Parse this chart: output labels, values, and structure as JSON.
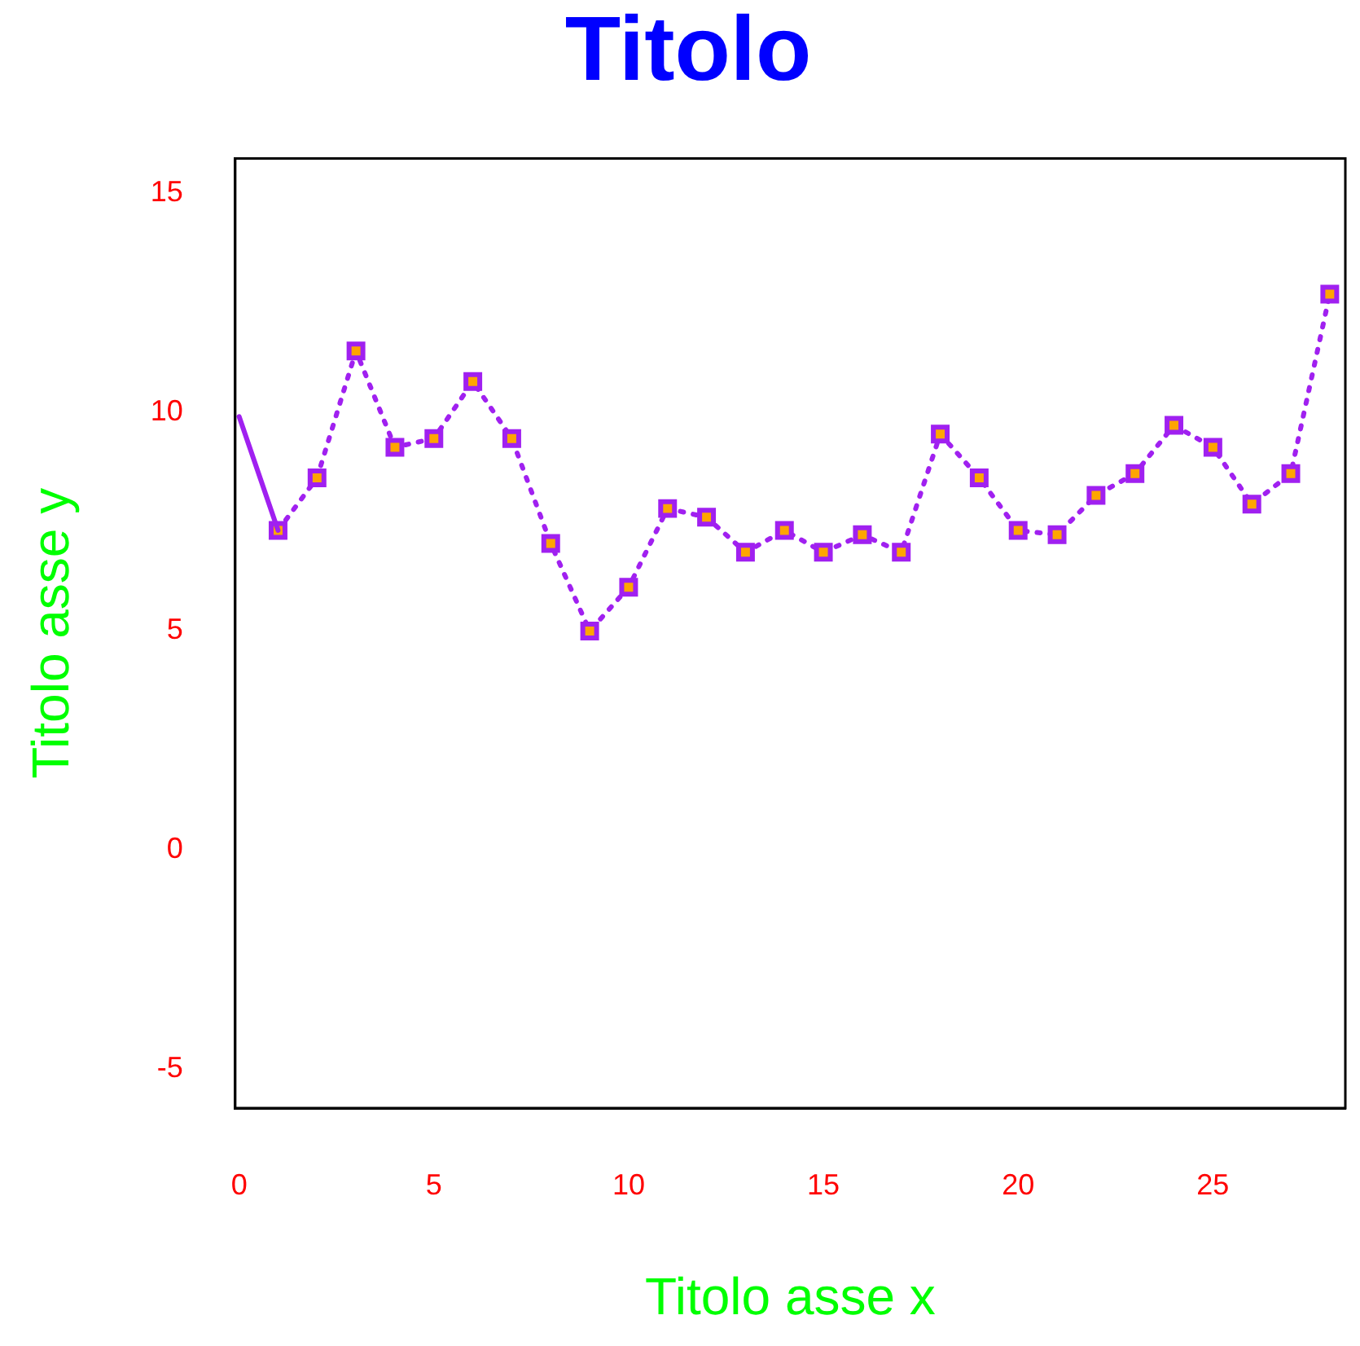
{
  "chart_data": {
    "type": "line",
    "title": "Titolo",
    "xlabel": "Titolo asse x",
    "ylabel": "Titolo asse y",
    "xlim": [
      -0.1,
      28.4
    ],
    "xticks": [
      0,
      5,
      10,
      15,
      20,
      25
    ],
    "ylim": [
      -5.9,
      15.8
    ],
    "yticks": [
      -5,
      0,
      5,
      10,
      15
    ],
    "grid": false,
    "legend": false,
    "series": [
      {
        "color": "#a020f0",
        "x": [
          0,
          1
        ],
        "values": [
          9.9,
          7.3
        ],
        "line_style": "solid"
      },
      {
        "color": "#a020f0",
        "x": [
          1,
          2,
          3,
          4,
          5,
          6,
          7,
          8,
          9,
          10,
          11,
          12,
          13,
          14,
          15,
          16,
          17,
          18,
          19,
          20,
          21,
          22,
          23,
          24,
          25,
          26,
          27,
          28
        ],
        "values": [
          7.3,
          8.5,
          11.4,
          9.2,
          9.4,
          10.7,
          9.4,
          7.0,
          5.0,
          6.0,
          7.8,
          7.6,
          6.8,
          7.3,
          6.8,
          7.2,
          6.8,
          9.5,
          8.5,
          7.3,
          7.2,
          8.1,
          8.6,
          9.7,
          9.2,
          7.9,
          8.6,
          12.7
        ],
        "line_style": "dotted",
        "marker": "square"
      }
    ]
  }
}
